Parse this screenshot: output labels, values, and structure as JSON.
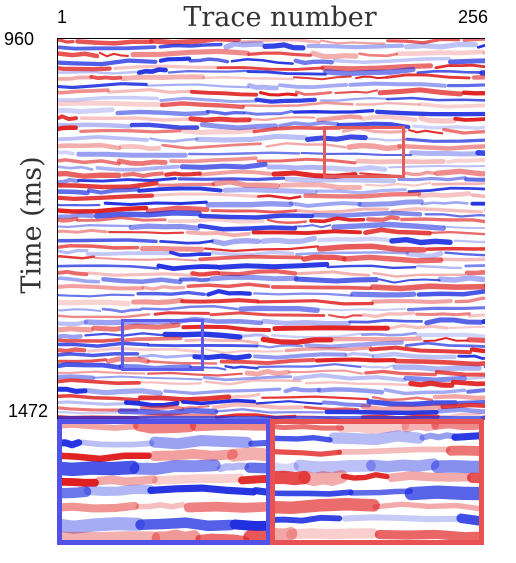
{
  "axes": {
    "x_title": "Trace number",
    "x_start": "1",
    "x_end": "256",
    "y_title": "Time (ms)",
    "y_start": "960",
    "y_end": "1472"
  },
  "colors": {
    "positive": "#e02020",
    "negative": "#2030e0",
    "zoom_red": "#e35b5b",
    "zoom_blue": "#5b5bf0"
  },
  "zoom_regions": [
    "blue",
    "red"
  ]
}
